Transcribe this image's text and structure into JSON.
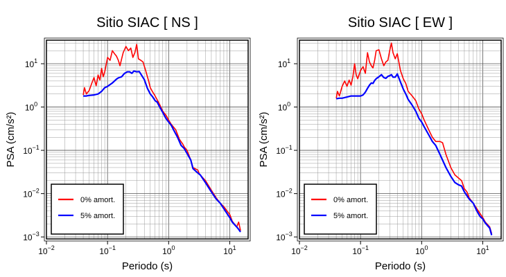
{
  "chart_data": [
    {
      "type": "line",
      "title": "Sitio SIAC [ NS ]",
      "xlabel": "Periodo (s)",
      "ylabel": "PSA (cm/s²)",
      "x_scale": "log",
      "y_scale": "log",
      "xlim": [
        0.01,
        20
      ],
      "ylim": [
        0.0009,
        35
      ],
      "grid": true,
      "x_ticks": [
        {
          "label_base": "10",
          "label_exp": "−2"
        },
        {
          "label_base": "10",
          "label_exp": "−1"
        },
        {
          "label_base": "10",
          "label_exp": "0"
        },
        {
          "label_base": "10",
          "label_exp": "1"
        }
      ],
      "y_ticks": [
        {
          "value": 0.001,
          "label_base": "10",
          "label_exp": "−3"
        },
        {
          "value": 0.01,
          "label_base": "10",
          "label_exp": "−2"
        },
        {
          "value": 0.1,
          "label_base": "10",
          "label_exp": "−1"
        },
        {
          "value": 1,
          "label_base": "10",
          "label_exp": "0"
        },
        {
          "value": 10,
          "label_base": "10",
          "label_exp": "1"
        }
      ],
      "legend_position": "bottom-left",
      "series": [
        {
          "name": "0% amort.",
          "color": "#ff0000",
          "points": [
            [
              0.04,
              1.9
            ],
            [
              0.042,
              2.8
            ],
            [
              0.045,
              2.0
            ],
            [
              0.05,
              2.4
            ],
            [
              0.055,
              3.5
            ],
            [
              0.06,
              4.8
            ],
            [
              0.065,
              3.1
            ],
            [
              0.07,
              5.5
            ],
            [
              0.075,
              4.2
            ],
            [
              0.08,
              7.8
            ],
            [
              0.085,
              5.0
            ],
            [
              0.09,
              6.5
            ],
            [
              0.1,
              14
            ],
            [
              0.11,
              12
            ],
            [
              0.12,
              20
            ],
            [
              0.13,
              17
            ],
            [
              0.14,
              15
            ],
            [
              0.15,
              12
            ],
            [
              0.16,
              9
            ],
            [
              0.17,
              13
            ],
            [
              0.18,
              18
            ],
            [
              0.2,
              25
            ],
            [
              0.22,
              20
            ],
            [
              0.24,
              23
            ],
            [
              0.26,
              14
            ],
            [
              0.28,
              18
            ],
            [
              0.3,
              28
            ],
            [
              0.32,
              13
            ],
            [
              0.35,
              12
            ],
            [
              0.38,
              11
            ],
            [
              0.42,
              7
            ],
            [
              0.47,
              4
            ],
            [
              0.5,
              2.8
            ],
            [
              0.55,
              2.2
            ],
            [
              0.6,
              1.8
            ],
            [
              0.7,
              1.2
            ],
            [
              0.8,
              0.8
            ],
            [
              0.9,
              0.65
            ],
            [
              1.0,
              0.5
            ],
            [
              1.1,
              0.4
            ],
            [
              1.3,
              0.3
            ],
            [
              1.5,
              0.18
            ],
            [
              1.7,
              0.14
            ],
            [
              1.8,
              0.12
            ],
            [
              2.0,
              0.1
            ],
            [
              2.3,
              0.06
            ],
            [
              2.5,
              0.04
            ],
            [
              3.0,
              0.035
            ],
            [
              3.2,
              0.028
            ],
            [
              4.0,
              0.02
            ],
            [
              5.0,
              0.012
            ],
            [
              6.0,
              0.008
            ],
            [
              7.0,
              0.006
            ],
            [
              8.0,
              0.005
            ],
            [
              9.0,
              0.004
            ],
            [
              10,
              0.0033
            ],
            [
              11,
              0.0023
            ],
            [
              13,
              0.0017
            ],
            [
              14,
              0.0022
            ],
            [
              15,
              0.0014
            ]
          ]
        },
        {
          "name": "5% amort.",
          "color": "#0000ff",
          "points": [
            [
              0.04,
              1.8
            ],
            [
              0.045,
              1.8
            ],
            [
              0.05,
              1.85
            ],
            [
              0.06,
              1.9
            ],
            [
              0.07,
              2.0
            ],
            [
              0.08,
              2.3
            ],
            [
              0.09,
              2.8
            ],
            [
              0.1,
              3.0
            ],
            [
              0.11,
              3.3
            ],
            [
              0.12,
              3.6
            ],
            [
              0.13,
              4.0
            ],
            [
              0.14,
              4.4
            ],
            [
              0.15,
              4.7
            ],
            [
              0.17,
              5.0
            ],
            [
              0.19,
              6.0
            ],
            [
              0.21,
              6.5
            ],
            [
              0.23,
              6.5
            ],
            [
              0.25,
              6.0
            ],
            [
              0.27,
              6.8
            ],
            [
              0.3,
              6.5
            ],
            [
              0.33,
              6.6
            ],
            [
              0.35,
              5.8
            ],
            [
              0.4,
              4.3
            ],
            [
              0.45,
              2.7
            ],
            [
              0.5,
              2.0
            ],
            [
              0.55,
              1.7
            ],
            [
              0.6,
              1.4
            ],
            [
              0.65,
              1.3
            ],
            [
              0.7,
              1.05
            ],
            [
              0.8,
              0.75
            ],
            [
              0.9,
              0.55
            ],
            [
              1.0,
              0.45
            ],
            [
              1.1,
              0.38
            ],
            [
              1.2,
              0.3
            ],
            [
              1.4,
              0.2
            ],
            [
              1.6,
              0.13
            ],
            [
              1.8,
              0.11
            ],
            [
              2.0,
              0.085
            ],
            [
              2.3,
              0.06
            ],
            [
              2.5,
              0.038
            ],
            [
              3.0,
              0.03
            ],
            [
              3.3,
              0.027
            ],
            [
              4.0,
              0.018
            ],
            [
              5.0,
              0.011
            ],
            [
              6.0,
              0.0075
            ],
            [
              7.0,
              0.006
            ],
            [
              8.0,
              0.0045
            ],
            [
              9.0,
              0.0035
            ],
            [
              10,
              0.0028
            ],
            [
              11,
              0.0022
            ],
            [
              13,
              0.0017
            ],
            [
              14,
              0.0015
            ],
            [
              15,
              0.0013
            ]
          ]
        }
      ]
    },
    {
      "type": "line",
      "title": "Sitio SIAC [ EW ]",
      "xlabel": "Periodo (s)",
      "ylabel": "PSA (cm/s²)",
      "x_scale": "log",
      "y_scale": "log",
      "xlim": [
        0.01,
        20
      ],
      "ylim": [
        0.0009,
        35
      ],
      "grid": true,
      "x_ticks": [
        {
          "label_base": "10",
          "label_exp": "−2"
        },
        {
          "label_base": "10",
          "label_exp": "−1"
        },
        {
          "label_base": "10",
          "label_exp": "0"
        },
        {
          "label_base": "10",
          "label_exp": "1"
        }
      ],
      "y_ticks": [
        {
          "value": 0.001,
          "label_base": "10",
          "label_exp": "−3"
        },
        {
          "value": 0.01,
          "label_base": "10",
          "label_exp": "−2"
        },
        {
          "value": 0.1,
          "label_base": "10",
          "label_exp": "−1"
        },
        {
          "value": 1,
          "label_base": "10",
          "label_exp": "0"
        },
        {
          "value": 10,
          "label_base": "10",
          "label_exp": "1"
        }
      ],
      "legend_position": "bottom-left",
      "series": [
        {
          "name": "0% amort.",
          "color": "#ff0000",
          "points": [
            [
              0.04,
              1.6
            ],
            [
              0.042,
              2.3
            ],
            [
              0.045,
              1.8
            ],
            [
              0.05,
              3.0
            ],
            [
              0.055,
              4.0
            ],
            [
              0.06,
              3.0
            ],
            [
              0.065,
              4.2
            ],
            [
              0.07,
              3.2
            ],
            [
              0.075,
              5.0
            ],
            [
              0.08,
              10
            ],
            [
              0.085,
              5.5
            ],
            [
              0.09,
              4.5
            ],
            [
              0.1,
              7
            ],
            [
              0.11,
              8.5
            ],
            [
              0.12,
              6
            ],
            [
              0.13,
              18
            ],
            [
              0.14,
              11
            ],
            [
              0.15,
              9
            ],
            [
              0.16,
              8
            ],
            [
              0.17,
              12
            ],
            [
              0.18,
              20
            ],
            [
              0.2,
              21
            ],
            [
              0.22,
              13
            ],
            [
              0.24,
              9
            ],
            [
              0.26,
              11
            ],
            [
              0.28,
              12
            ],
            [
              0.3,
              20
            ],
            [
              0.32,
              30
            ],
            [
              0.34,
              18
            ],
            [
              0.37,
              13
            ],
            [
              0.4,
              17
            ],
            [
              0.45,
              7
            ],
            [
              0.5,
              4.5
            ],
            [
              0.55,
              3.5
            ],
            [
              0.6,
              2.3
            ],
            [
              0.7,
              1.8
            ],
            [
              0.8,
              1.4
            ],
            [
              0.9,
              0.9
            ],
            [
              1.0,
              0.7
            ],
            [
              1.1,
              0.5
            ],
            [
              1.3,
              0.3
            ],
            [
              1.5,
              0.2
            ],
            [
              1.7,
              0.16
            ],
            [
              2.0,
              0.16
            ],
            [
              2.2,
              0.15
            ],
            [
              2.5,
              0.08
            ],
            [
              3.0,
              0.04
            ],
            [
              3.5,
              0.027
            ],
            [
              4.0,
              0.023
            ],
            [
              4.5,
              0.02
            ],
            [
              5.0,
              0.013
            ],
            [
              5.5,
              0.011
            ],
            [
              6.0,
              0.008
            ],
            [
              7.0,
              0.006
            ],
            [
              8.0,
              0.0045
            ],
            [
              9.0,
              0.0035
            ],
            [
              10,
              0.0028
            ],
            [
              11,
              0.0022
            ],
            [
              13,
              0.0017
            ],
            [
              14,
              0.0012
            ]
          ]
        },
        {
          "name": "5% amort.",
          "color": "#0000ff",
          "points": [
            [
              0.04,
              1.55
            ],
            [
              0.045,
              1.6
            ],
            [
              0.05,
              1.6
            ],
            [
              0.06,
              1.7
            ],
            [
              0.07,
              1.8
            ],
            [
              0.08,
              1.8
            ],
            [
              0.09,
              1.8
            ],
            [
              0.1,
              1.8
            ],
            [
              0.11,
              1.9
            ],
            [
              0.12,
              2.2
            ],
            [
              0.13,
              2.7
            ],
            [
              0.14,
              3.2
            ],
            [
              0.15,
              3.6
            ],
            [
              0.16,
              3.5
            ],
            [
              0.17,
              4.1
            ],
            [
              0.18,
              4.5
            ],
            [
              0.2,
              5.0
            ],
            [
              0.22,
              5.6
            ],
            [
              0.24,
              4.8
            ],
            [
              0.26,
              4.6
            ],
            [
              0.28,
              5.1
            ],
            [
              0.3,
              5.3
            ],
            [
              0.32,
              5.6
            ],
            [
              0.34,
              4.9
            ],
            [
              0.37,
              4.9
            ],
            [
              0.4,
              5.8
            ],
            [
              0.45,
              3.8
            ],
            [
              0.5,
              2.6
            ],
            [
              0.55,
              2.0
            ],
            [
              0.6,
              1.5
            ],
            [
              0.7,
              1.1
            ],
            [
              0.8,
              0.8
            ],
            [
              0.9,
              0.55
            ],
            [
              1.0,
              0.45
            ],
            [
              1.1,
              0.35
            ],
            [
              1.3,
              0.23
            ],
            [
              1.5,
              0.16
            ],
            [
              1.7,
              0.13
            ],
            [
              2.0,
              0.08
            ],
            [
              2.5,
              0.04
            ],
            [
              3.0,
              0.025
            ],
            [
              3.5,
              0.018
            ],
            [
              4.0,
              0.016
            ],
            [
              4.5,
              0.015
            ],
            [
              5.0,
              0.011
            ],
            [
              5.5,
              0.009
            ],
            [
              6.0,
              0.0075
            ],
            [
              7.0,
              0.006
            ],
            [
              8.0,
              0.004
            ],
            [
              9.0,
              0.003
            ],
            [
              10,
              0.0026
            ],
            [
              11,
              0.0021
            ],
            [
              13,
              0.0016
            ],
            [
              14,
              0.0011
            ]
          ]
        }
      ]
    }
  ]
}
